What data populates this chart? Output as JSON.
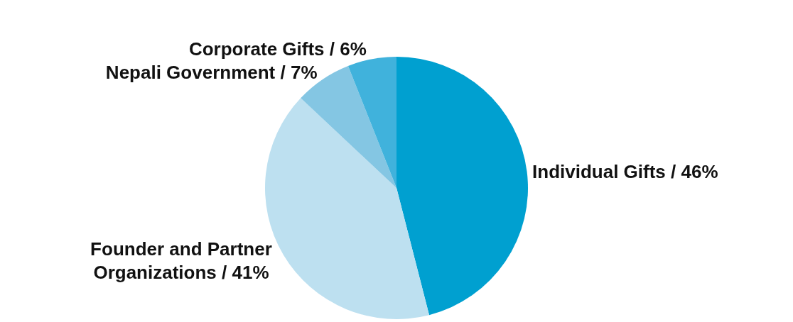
{
  "chart_data": {
    "type": "pie",
    "categories": [
      "Individual Gifts / 46%",
      "Founder and Partner Organizations / 41%",
      "Nepali Government / 7%",
      "Corporate Gifts / 6%"
    ],
    "values": [
      46,
      41,
      7,
      6
    ],
    "colors": [
      "#00a0d0",
      "#bde0f0",
      "#84c6e3",
      "#40b2dc"
    ],
    "legend": false
  }
}
